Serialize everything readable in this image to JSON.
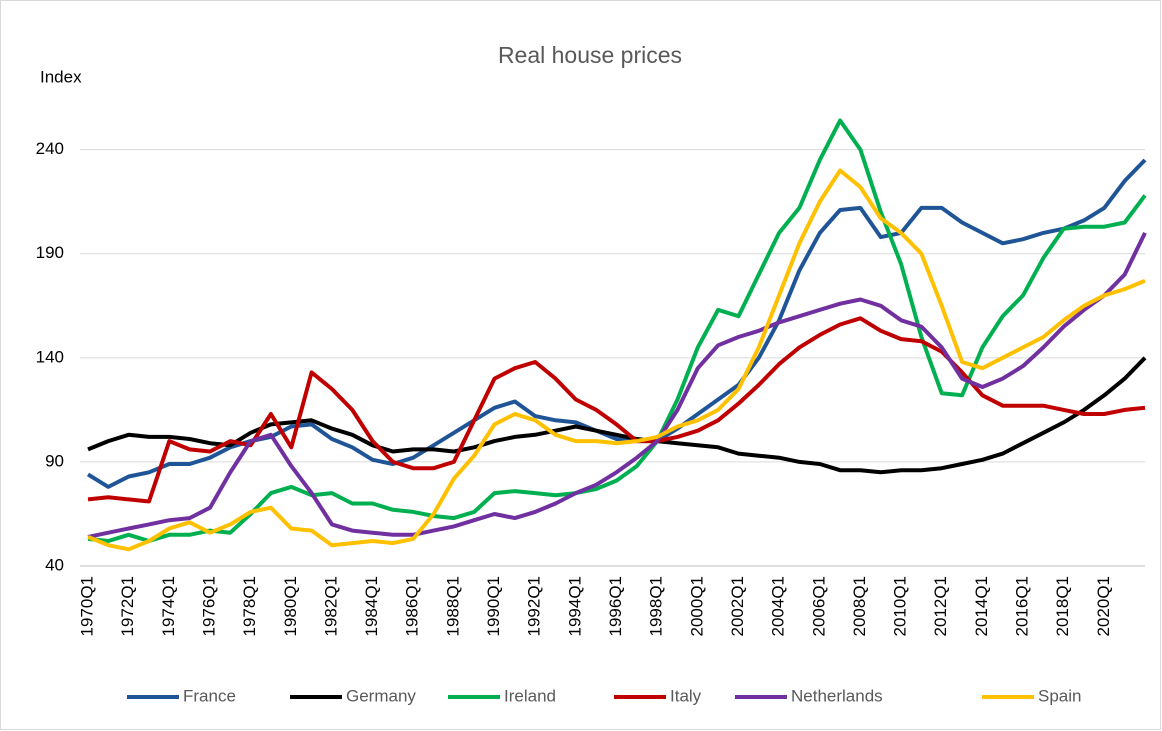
{
  "chart_data": {
    "type": "line",
    "title": "Real house prices",
    "y_label": "Index",
    "categories": [
      "1970Q1",
      null,
      "1972Q1",
      null,
      "1974Q1",
      null,
      "1976Q1",
      null,
      "1978Q1",
      null,
      "1980Q1",
      null,
      "1982Q1",
      null,
      "1984Q1",
      null,
      "1986Q1",
      null,
      "1988Q1",
      null,
      "1990Q1",
      null,
      "1992Q1",
      null,
      "1994Q1",
      null,
      "1996Q1",
      null,
      "1998Q1",
      null,
      "2000Q1",
      null,
      "2002Q1",
      null,
      "2004Q1",
      null,
      "2006Q1",
      null,
      "2008Q1",
      null,
      "2010Q1",
      null,
      "2012Q1",
      null,
      "2014Q1",
      null,
      "2016Q1",
      null,
      "2018Q1",
      null,
      "2020Q1",
      null,
      null
    ],
    "series": [
      {
        "name": "France",
        "color": "#1f5597",
        "values": [
          84,
          78,
          83,
          85,
          89,
          89,
          92,
          97,
          100,
          102,
          107,
          108,
          101,
          97,
          91,
          89,
          92,
          98,
          104,
          110,
          116,
          119,
          112,
          110,
          109,
          105,
          101,
          100,
          100,
          106,
          113,
          120,
          127,
          140,
          158,
          182,
          200,
          211,
          212,
          198,
          200,
          212,
          212,
          205,
          200,
          195,
          197,
          200,
          202,
          206,
          212,
          225,
          235
        ]
      },
      {
        "name": "Germany",
        "color": "#000000",
        "values": [
          96,
          100,
          103,
          102,
          102,
          101,
          99,
          98,
          104,
          108,
          109,
          110,
          106,
          103,
          98,
          95,
          96,
          96,
          95,
          97,
          100,
          102,
          103,
          105,
          107,
          105,
          103,
          101,
          100,
          99,
          98,
          97,
          94,
          93,
          92,
          90,
          89,
          86,
          86,
          85,
          86,
          86,
          87,
          89,
          91,
          94,
          99,
          104,
          109,
          115,
          122,
          130,
          140
        ]
      },
      {
        "name": "Ireland",
        "color": "#00b050",
        "values": [
          53,
          52,
          55,
          52,
          55,
          55,
          57,
          56,
          65,
          75,
          78,
          74,
          75,
          70,
          70,
          67,
          66,
          64,
          63,
          66,
          75,
          76,
          75,
          74,
          75,
          77,
          81,
          88,
          100,
          120,
          145,
          163,
          160,
          180,
          200,
          212,
          235,
          254,
          240,
          210,
          185,
          150,
          123,
          122,
          145,
          160,
          170,
          188,
          202,
          203,
          203,
          205,
          218
        ]
      },
      {
        "name": "Italy",
        "color": "#c00000",
        "values": [
          72,
          73,
          72,
          71,
          100,
          96,
          95,
          100,
          98,
          113,
          97,
          133,
          125,
          115,
          100,
          90,
          87,
          87,
          90,
          110,
          130,
          135,
          138,
          130,
          120,
          115,
          108,
          100,
          100,
          102,
          105,
          110,
          118,
          127,
          137,
          145,
          151,
          156,
          159,
          153,
          149,
          148,
          143,
          133,
          122,
          117,
          117,
          117,
          115,
          113,
          113,
          115,
          116
        ]
      },
      {
        "name": "Netherlands",
        "color": "#7030a0",
        "values": [
          54,
          56,
          58,
          60,
          62,
          63,
          68,
          85,
          100,
          103,
          88,
          75,
          60,
          57,
          56,
          55,
          55,
          57,
          59,
          62,
          65,
          63,
          66,
          70,
          75,
          79,
          85,
          92,
          100,
          115,
          135,
          146,
          150,
          153,
          157,
          160,
          163,
          166,
          168,
          165,
          158,
          155,
          145,
          130,
          126,
          130,
          136,
          145,
          155,
          163,
          170,
          180,
          200
        ]
      },
      {
        "name": "Spain",
        "color": "#ffc000",
        "values": [
          54,
          50,
          48,
          52,
          58,
          61,
          56,
          60,
          66,
          68,
          58,
          57,
          50,
          51,
          52,
          51,
          53,
          65,
          82,
          93,
          108,
          113,
          110,
          103,
          100,
          100,
          99,
          100,
          102,
          107,
          110,
          115,
          125,
          145,
          170,
          195,
          215,
          230,
          222,
          207,
          200,
          190,
          165,
          138,
          135,
          140,
          145,
          150,
          158,
          165,
          170,
          173,
          177
        ]
      }
    ],
    "ylim": [
      40,
      260
    ],
    "yticks": [
      40,
      90,
      140,
      190,
      240
    ],
    "grid": true,
    "legend": "bottom"
  }
}
